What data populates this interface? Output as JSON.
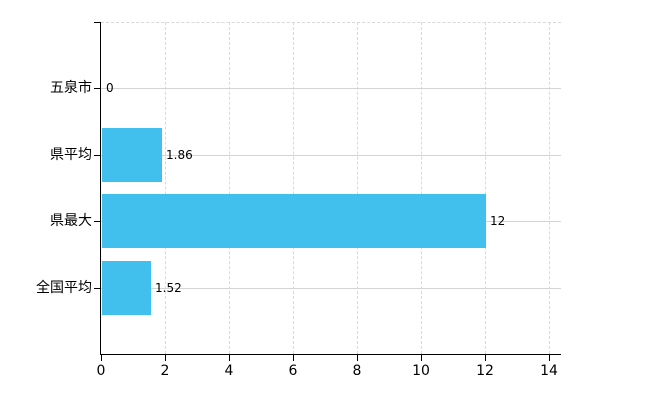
{
  "chart_data": {
    "type": "bar",
    "orientation": "horizontal",
    "title": "",
    "categories": [
      "五泉市",
      "県平均",
      "県最大",
      "全国平均"
    ],
    "values": [
      0,
      1.86,
      12,
      1.52
    ],
    "value_labels": [
      "0",
      "1.86",
      "12",
      "1.52"
    ],
    "x_tick_labels": [
      "0",
      "2",
      "4",
      "6",
      "8",
      "10",
      "12",
      "14"
    ],
    "x_tick_values": [
      0,
      2,
      4,
      6,
      8,
      10,
      12,
      14
    ],
    "xlim": [
      0,
      14
    ],
    "ylabel": "",
    "xlabel": "",
    "grid": true,
    "legend_position": "none",
    "colors": {
      "bar": "#41C0EE",
      "axis": "#000000",
      "grid": "#D8D8D8",
      "text": "#000000",
      "background": "#FFFFFF"
    }
  }
}
